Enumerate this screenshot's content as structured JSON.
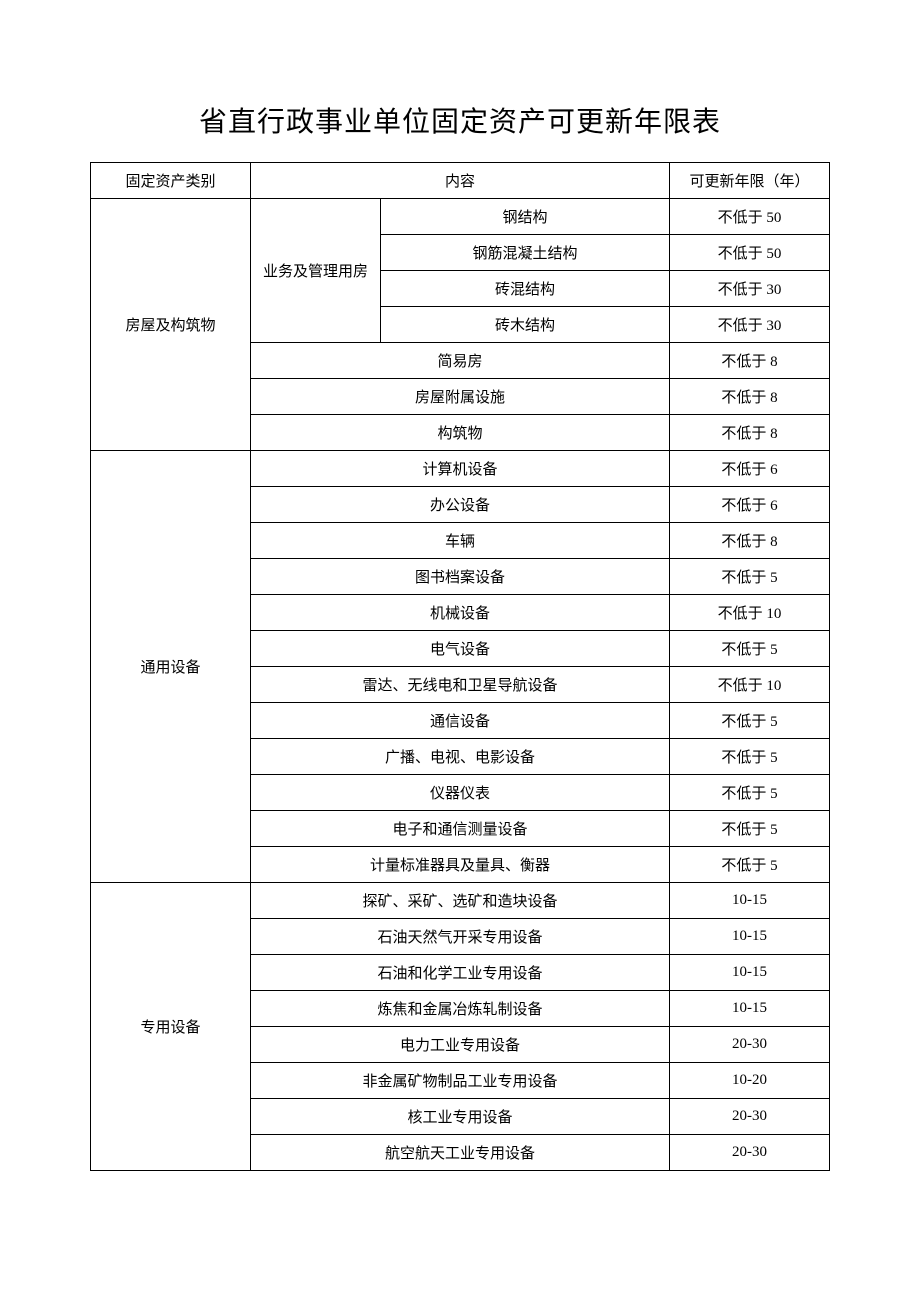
{
  "title": "省直行政事业单位固定资产可更新年限表",
  "header": {
    "category": "固定资产类别",
    "content": "内容",
    "years": "可更新年限（年）"
  },
  "groups": [
    {
      "category": "房屋及构筑物",
      "rows": [
        {
          "sub": "业务及管理用房",
          "subSpan": 4,
          "item": "钢结构",
          "years": "不低于 50"
        },
        {
          "item": "钢筋混凝土结构",
          "years": "不低于 50"
        },
        {
          "item": "砖混结构",
          "years": "不低于 30"
        },
        {
          "item": "砖木结构",
          "years": "不低于 30"
        },
        {
          "wide": "简易房",
          "years": "不低于 8"
        },
        {
          "wide": "房屋附属设施",
          "years": "不低于 8"
        },
        {
          "wide": "构筑物",
          "years": "不低于 8"
        }
      ]
    },
    {
      "category": "通用设备",
      "rows": [
        {
          "wide": "计算机设备",
          "years": "不低于 6"
        },
        {
          "wide": "办公设备",
          "years": "不低于 6"
        },
        {
          "wide": "车辆",
          "years": "不低于 8"
        },
        {
          "wide": "图书档案设备",
          "years": "不低于 5"
        },
        {
          "wide": "机械设备",
          "years": "不低于 10"
        },
        {
          "wide": "电气设备",
          "years": "不低于 5"
        },
        {
          "wide": "雷达、无线电和卫星导航设备",
          "years": "不低于 10"
        },
        {
          "wide": "通信设备",
          "years": "不低于 5"
        },
        {
          "wide": "广播、电视、电影设备",
          "years": "不低于 5"
        },
        {
          "wide": "仪器仪表",
          "years": "不低于 5"
        },
        {
          "wide": "电子和通信测量设备",
          "years": "不低于 5"
        },
        {
          "wide": "计量标准器具及量具、衡器",
          "years": "不低于 5"
        }
      ]
    },
    {
      "category": "专用设备",
      "rows": [
        {
          "wide": "探矿、采矿、选矿和造块设备",
          "years": "10-15"
        },
        {
          "wide": "石油天然气开采专用设备",
          "years": "10-15"
        },
        {
          "wide": "石油和化学工业专用设备",
          "years": "10-15"
        },
        {
          "wide": "炼焦和金属冶炼轧制设备",
          "years": "10-15"
        },
        {
          "wide": "电力工业专用设备",
          "years": "20-30"
        },
        {
          "wide": "非金属矿物制品工业专用设备",
          "years": "10-20"
        },
        {
          "wide": "核工业专用设备",
          "years": "20-30"
        },
        {
          "wide": "航空航天工业专用设备",
          "years": "20-30"
        }
      ]
    }
  ]
}
